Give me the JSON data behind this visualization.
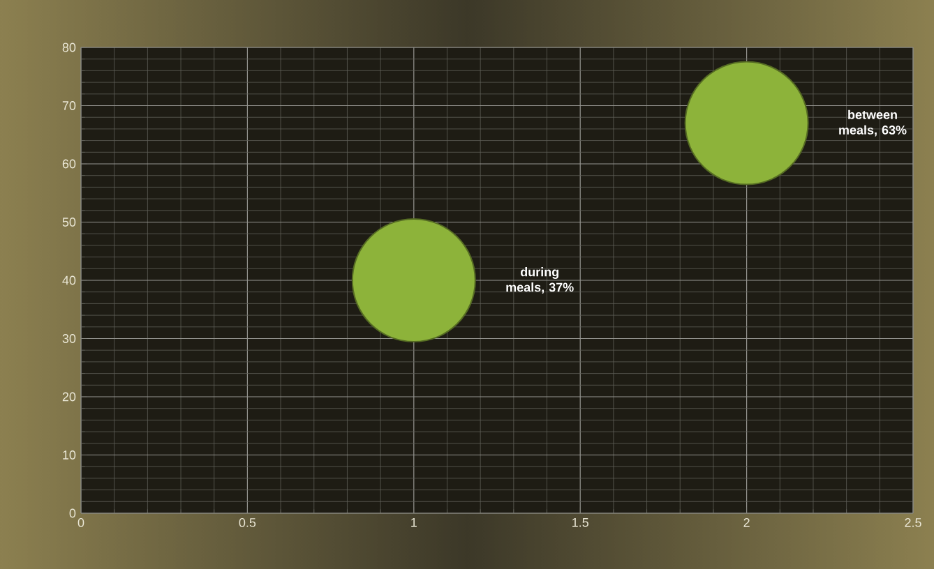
{
  "chart_data": {
    "type": "bubble",
    "series": [
      {
        "color": "#8db33a",
        "x": [
          1,
          2
        ],
        "values": [
          40,
          67
        ],
        "sizes": [
          1,
          1
        ]
      }
    ],
    "xlim": [
      0,
      2.5
    ],
    "xticks": [
      0,
      0.5,
      1,
      1.5,
      2,
      2.5
    ],
    "ylim": [
      0,
      80
    ],
    "yticks": [
      0,
      10,
      20,
      30,
      40,
      50,
      60,
      70,
      80
    ],
    "grid": true,
    "annotations": [
      "during meals, 37%",
      "between meals, 63%"
    ]
  }
}
